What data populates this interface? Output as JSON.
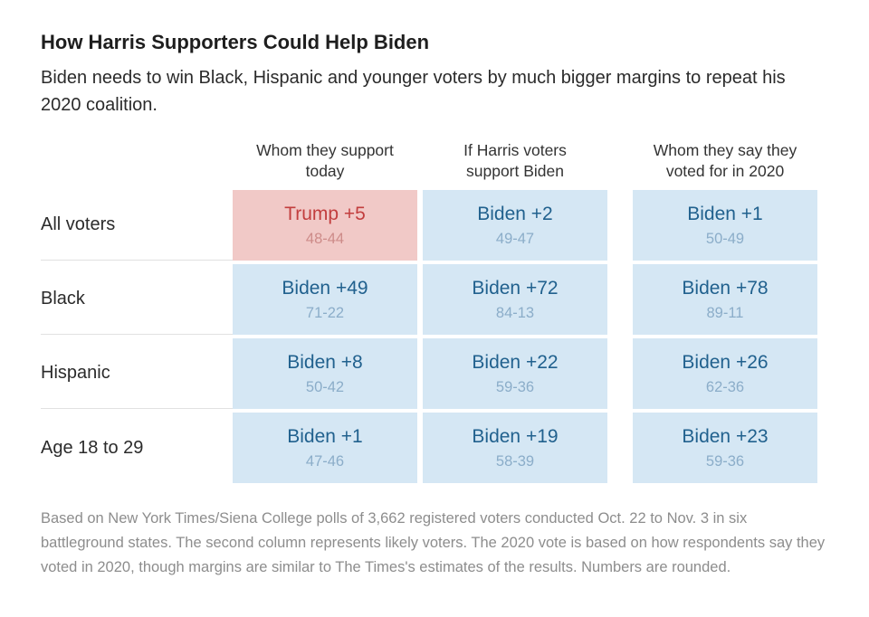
{
  "chart_data": {
    "type": "table",
    "title": "How Harris Supporters Could Help Biden",
    "subtitle": "Biden needs to win Black, Hispanic and younger voters by much bigger margins to repeat his 2020 coalition.",
    "columns": [
      {
        "label": "Whom they support today",
        "lines": [
          "Whom they support",
          "today"
        ]
      },
      {
        "label": "If Harris voters support Biden",
        "lines": [
          "If Harris voters",
          "support Biden"
        ]
      },
      {
        "label": "Whom they say they voted for in 2020",
        "lines": [
          "Whom they say they",
          "voted for in 2020"
        ]
      }
    ],
    "rows": [
      {
        "label": "All voters",
        "cells": [
          {
            "margin": "Trump +5",
            "detail": "48-44",
            "tone": "red",
            "leader": "Trump",
            "margin_value": 5
          },
          {
            "margin": "Biden +2",
            "detail": "49-47",
            "tone": "blue",
            "leader": "Biden",
            "margin_value": 2
          },
          {
            "margin": "Biden +1",
            "detail": "50-49",
            "tone": "blue",
            "leader": "Biden",
            "margin_value": 1
          }
        ]
      },
      {
        "label": "Black",
        "cells": [
          {
            "margin": "Biden +49",
            "detail": "71-22",
            "tone": "blue",
            "leader": "Biden",
            "margin_value": 49
          },
          {
            "margin": "Biden +72",
            "detail": "84-13",
            "tone": "blue",
            "leader": "Biden",
            "margin_value": 72
          },
          {
            "margin": "Biden +78",
            "detail": "89-11",
            "tone": "blue",
            "leader": "Biden",
            "margin_value": 78
          }
        ]
      },
      {
        "label": "Hispanic",
        "cells": [
          {
            "margin": "Biden +8",
            "detail": "50-42",
            "tone": "blue",
            "leader": "Biden",
            "margin_value": 8
          },
          {
            "margin": "Biden +22",
            "detail": "59-36",
            "tone": "blue",
            "leader": "Biden",
            "margin_value": 22
          },
          {
            "margin": "Biden +26",
            "detail": "62-36",
            "tone": "blue",
            "leader": "Biden",
            "margin_value": 26
          }
        ]
      },
      {
        "label": "Age 18 to 29",
        "cells": [
          {
            "margin": "Biden +1",
            "detail": "47-46",
            "tone": "blue",
            "leader": "Biden",
            "margin_value": 1
          },
          {
            "margin": "Biden +19",
            "detail": "58-39",
            "tone": "blue",
            "leader": "Biden",
            "margin_value": 19
          },
          {
            "margin": "Biden +23",
            "detail": "59-36",
            "tone": "blue",
            "leader": "Biden",
            "margin_value": 23
          }
        ]
      }
    ],
    "note": "Based on New York Times/Siena College polls of 3,662 registered voters conducted Oct. 22 to Nov. 3 in six battleground states. The second column represents likely voters. The 2020 vote is based on how respondents say they voted in 2020, though margins are similar to The Times's estimates of the results. Numbers are rounded."
  },
  "colors": {
    "red-cell-bg": "#f1c9c7",
    "red-strong": "#c23e3e",
    "red-soft": "#cd8b89",
    "blue-cell-bg": "#d5e7f4",
    "blue-strong": "#21618e",
    "blue-soft": "#8badc9"
  }
}
